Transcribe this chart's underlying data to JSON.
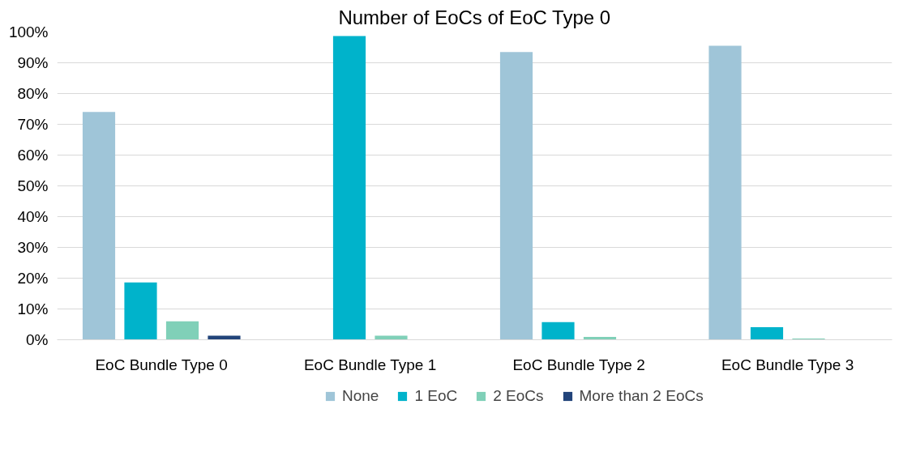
{
  "chart_data": {
    "type": "bar",
    "title": "Number of EoCs of EoC Type 0",
    "categories": [
      "EoC Bundle Type 0",
      "EoC Bundle Type 1",
      "EoC Bundle Type 2",
      "EoC Bundle Type 3"
    ],
    "series": [
      {
        "name": "None",
        "color": "#9fc5d8",
        "values": [
          74,
          0,
          93.5,
          95.5
        ]
      },
      {
        "name": "1 EoC",
        "color": "#00b3cb",
        "values": [
          18.6,
          98.7,
          5.7,
          4.1
        ]
      },
      {
        "name": "2 EoCs",
        "color": "#80d0b8",
        "values": [
          6,
          1.3,
          0.9,
          0.4
        ]
      },
      {
        "name": "More than 2 EoCs",
        "color": "#22447a",
        "values": [
          1.3,
          0,
          0,
          0
        ]
      }
    ],
    "ylim": [
      0,
      100
    ],
    "yticks": [
      {
        "value": 0,
        "label": "0%"
      },
      {
        "value": 10,
        "label": "10%"
      },
      {
        "value": 20,
        "label": "20%"
      },
      {
        "value": 30,
        "label": "30%"
      },
      {
        "value": 40,
        "label": "40%"
      },
      {
        "value": 50,
        "label": "50%"
      },
      {
        "value": 60,
        "label": "60%"
      },
      {
        "value": 70,
        "label": "70%"
      },
      {
        "value": 80,
        "label": "80%"
      },
      {
        "value": 90,
        "label": "90%"
      },
      {
        "value": 100,
        "label": "100%"
      }
    ],
    "grid": "y",
    "legend": "bottom"
  }
}
